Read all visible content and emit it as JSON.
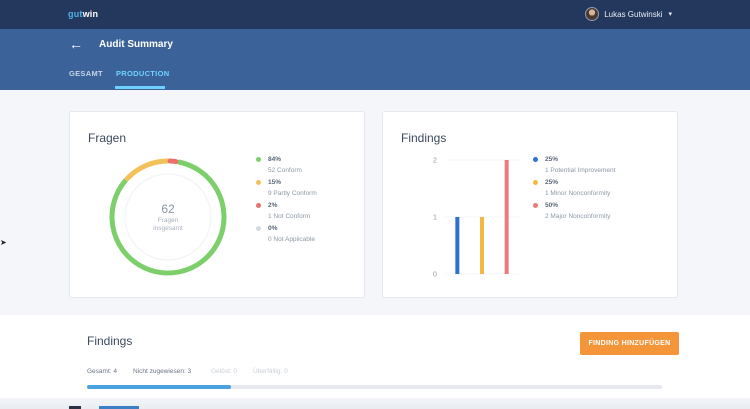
{
  "app": {
    "logo_prefix": "gut",
    "logo_suffix": "win"
  },
  "user": {
    "name": "Lukas Gutwinski",
    "caret": "▾"
  },
  "header": {
    "back_icon": "←",
    "title": "Audit Summary"
  },
  "tabs": [
    {
      "label": "GESAMT",
      "active": false
    },
    {
      "label": "PRODUCTION",
      "active": true
    }
  ],
  "fragen": {
    "title": "Fragen",
    "total": "62",
    "total_label_1": "Fragen",
    "total_label_2": "insgesamt",
    "legend": [
      {
        "pct": "84%",
        "desc": "52 Conform",
        "color": "#7ccf6a",
        "value": 52
      },
      {
        "pct": "15%",
        "desc": "9 Partly Conform",
        "color": "#f3c15a",
        "value": 9
      },
      {
        "pct": "2%",
        "desc": "1 Not Conform",
        "color": "#ec6f6f",
        "value": 1
      },
      {
        "pct": "0%",
        "desc": "0 Not Applicable",
        "color": "#d4d9e0",
        "value": 0
      }
    ]
  },
  "findings_chart": {
    "title": "Findings",
    "legend": [
      {
        "pct": "25%",
        "desc": "1 Potential Improvement",
        "color": "#2e6fd0"
      },
      {
        "pct": "25%",
        "desc": "1 Minor Nonconformity",
        "color": "#f2b843"
      },
      {
        "pct": "50%",
        "desc": "2 Major Nonconformity",
        "color": "#ec7a7a"
      }
    ]
  },
  "chart_data": {
    "type": "bar",
    "categories": [
      "Potential Improvement",
      "Minor Nonconformity",
      "Major Nonconformity"
    ],
    "values": [
      1,
      1,
      2
    ],
    "colors": [
      "#2e6fd0",
      "#f2b843",
      "#ec7a7a"
    ],
    "ylim": [
      0,
      2
    ],
    "yticks": [
      "0",
      "1",
      "2"
    ],
    "title": "",
    "xlabel": "",
    "ylabel": ""
  },
  "findings_section": {
    "title": "Findings",
    "add_button": "FINDING HINZUFÜGEN",
    "filters": [
      {
        "label": "Gesamt: 4"
      },
      {
        "label": "Nicht zugewiesen: 3"
      },
      {
        "label": "Gelöst: 0"
      },
      {
        "label": "Überfällig: 0"
      }
    ],
    "progress_fraction": 0.25
  }
}
